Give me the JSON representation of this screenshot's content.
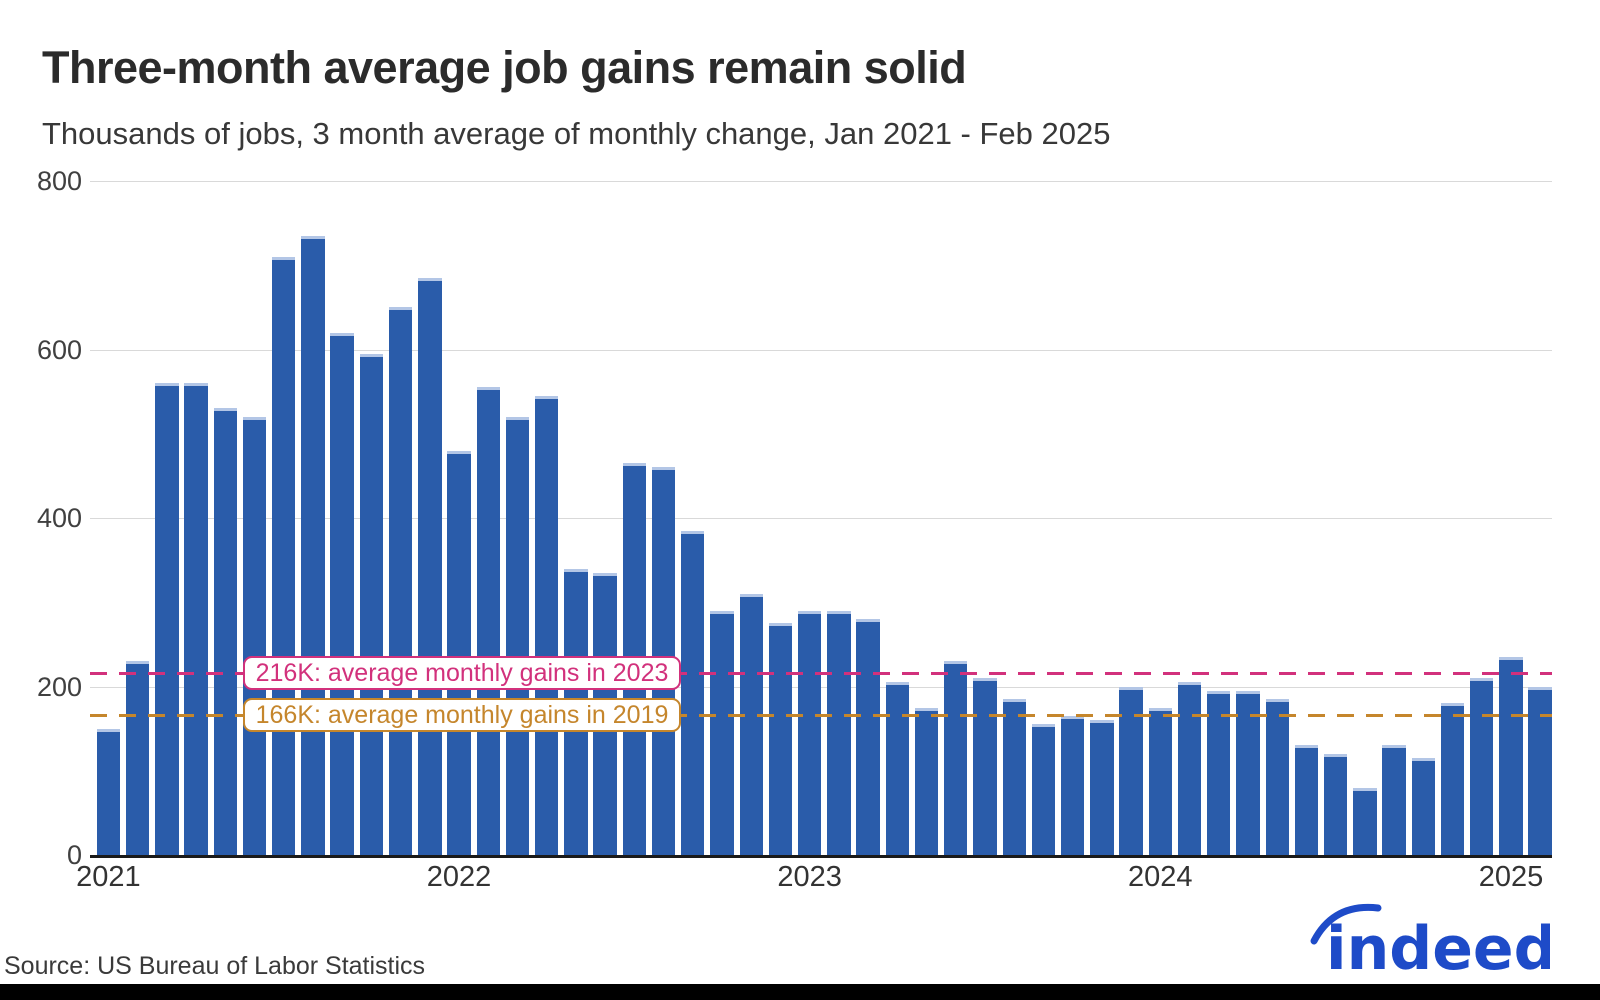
{
  "title": "Three-month average job gains remain solid",
  "subtitle": "Thousands of jobs, 3 month average of monthly change, Jan 2021 - Feb 2025",
  "source": "Source: US Bureau of Labor Statistics",
  "logo": {
    "text": "indeed",
    "color": "#1e4bc8"
  },
  "colors": {
    "bar": "#2a5caa",
    "bar_top_edge": "#b3c6e6",
    "grid": "#d9d9d9",
    "axis": "#1a1a1a",
    "line_2023": "#d2317c",
    "line_2019": "#c5862c",
    "title_text": "#2b2b2b"
  },
  "annotations": [
    {
      "id": "avg-2023",
      "label": "216K: average monthly gains in 2023",
      "value": 216,
      "color": "#d2317c"
    },
    {
      "id": "avg-2019",
      "label": "166K: average monthly gains in 2019",
      "value": 166,
      "color": "#c5862c"
    }
  ],
  "chart_data": {
    "type": "bar",
    "title": "Three-month average job gains remain solid",
    "ylabel": "Thousands of jobs",
    "ylim": [
      0,
      800
    ],
    "yticks": [
      0,
      200,
      400,
      600,
      800
    ],
    "xticks": [
      "2021",
      "2022",
      "2023",
      "2024",
      "2025"
    ],
    "grid": true,
    "categories": [
      "Jan 2021",
      "Feb 2021",
      "Mar 2021",
      "Apr 2021",
      "May 2021",
      "Jun 2021",
      "Jul 2021",
      "Aug 2021",
      "Sep 2021",
      "Oct 2021",
      "Nov 2021",
      "Dec 2021",
      "Jan 2022",
      "Feb 2022",
      "Mar 2022",
      "Apr 2022",
      "May 2022",
      "Jun 2022",
      "Jul 2022",
      "Aug 2022",
      "Sep 2022",
      "Oct 2022",
      "Nov 2022",
      "Dec 2022",
      "Jan 2023",
      "Feb 2023",
      "Mar 2023",
      "Apr 2023",
      "May 2023",
      "Jun 2023",
      "Jul 2023",
      "Aug 2023",
      "Sep 2023",
      "Oct 2023",
      "Nov 2023",
      "Dec 2023",
      "Jan 2024",
      "Feb 2024",
      "Mar 2024",
      "Apr 2024",
      "May 2024",
      "Jun 2024",
      "Jul 2024",
      "Aug 2024",
      "Sep 2024",
      "Oct 2024",
      "Nov 2024",
      "Dec 2024",
      "Jan 2025",
      "Feb 2025"
    ],
    "values": [
      150,
      230,
      560,
      560,
      530,
      520,
      710,
      735,
      620,
      595,
      650,
      685,
      480,
      555,
      520,
      545,
      340,
      335,
      465,
      460,
      385,
      290,
      310,
      275,
      290,
      290,
      280,
      205,
      175,
      230,
      210,
      185,
      155,
      165,
      160,
      200,
      175,
      205,
      195,
      195,
      185,
      130,
      120,
      80,
      130,
      115,
      180,
      210,
      235,
      200
    ],
    "reference_lines": [
      {
        "label": "216K: average monthly gains in 2023",
        "value": 216
      },
      {
        "label": "166K: average monthly gains in 2019",
        "value": 166
      }
    ]
  }
}
